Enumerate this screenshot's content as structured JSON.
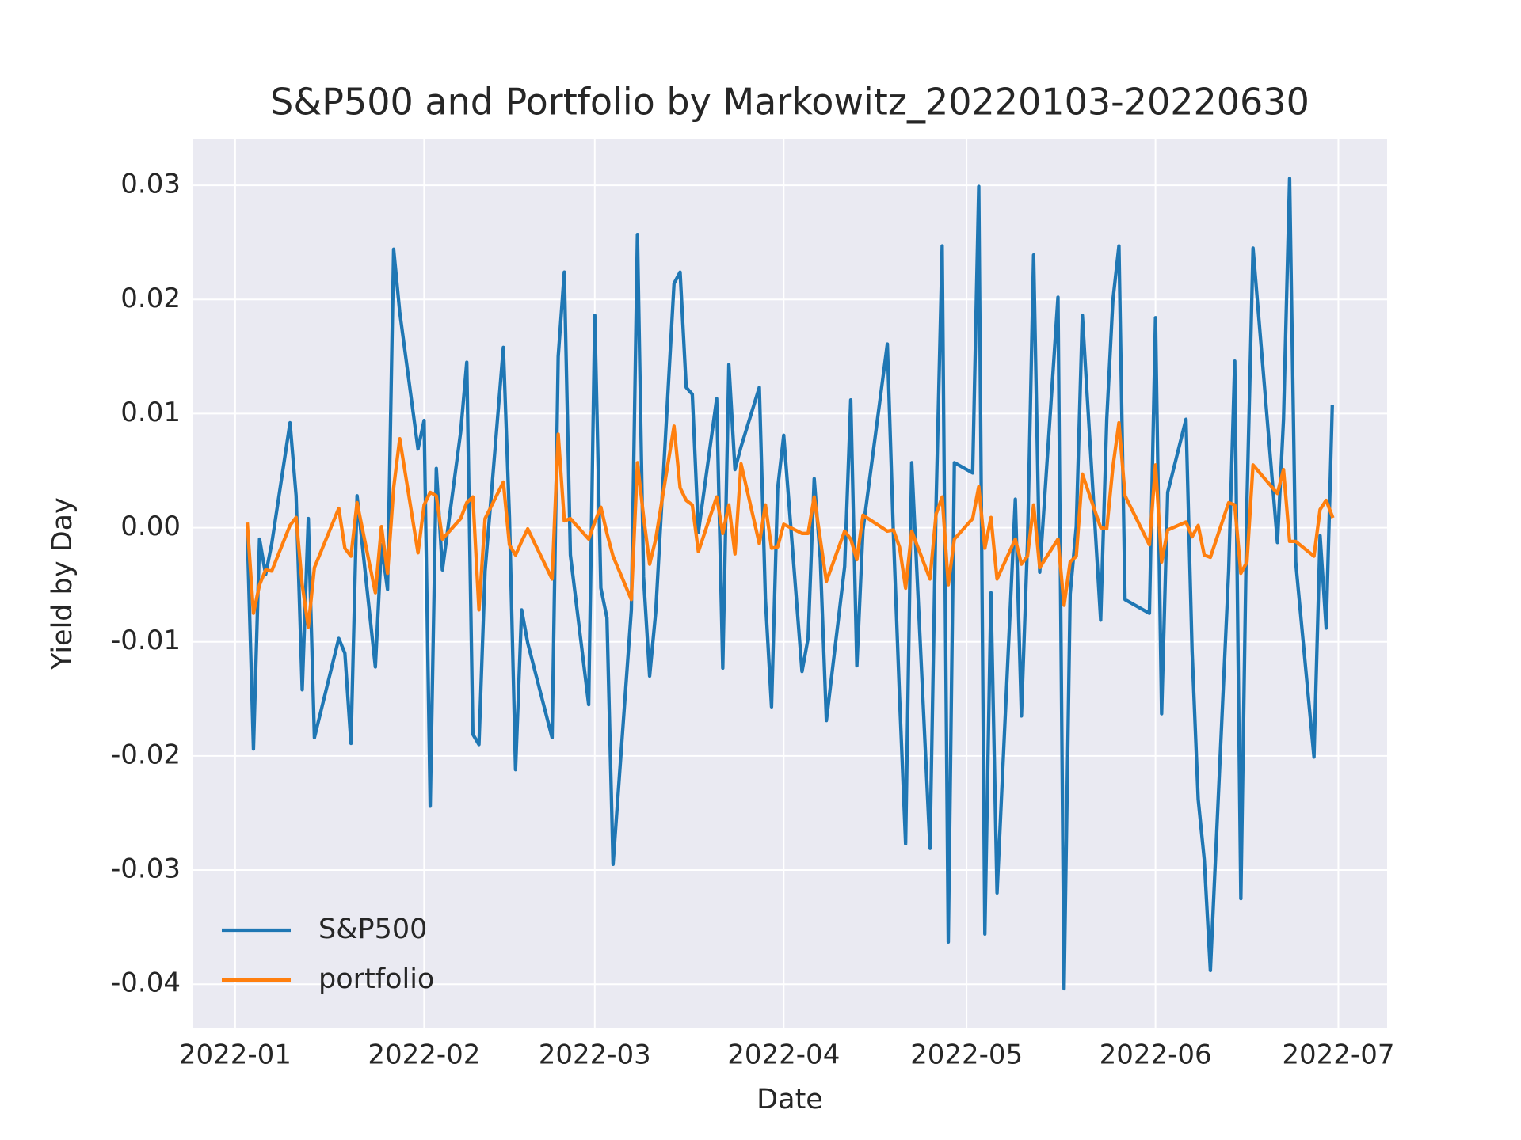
{
  "chart_data": {
    "type": "line",
    "title": "S&P500 and Portfolio by Markowitz_20220103-20220630",
    "xlabel": "Date",
    "ylabel": "Yield by Day",
    "x": [
      "2022-01-03",
      "2022-01-04",
      "2022-01-05",
      "2022-01-06",
      "2022-01-07",
      "2022-01-10",
      "2022-01-11",
      "2022-01-12",
      "2022-01-13",
      "2022-01-14",
      "2022-01-18",
      "2022-01-19",
      "2022-01-20",
      "2022-01-21",
      "2022-01-24",
      "2022-01-25",
      "2022-01-26",
      "2022-01-27",
      "2022-01-28",
      "2022-01-31",
      "2022-02-01",
      "2022-02-02",
      "2022-02-03",
      "2022-02-04",
      "2022-02-07",
      "2022-02-08",
      "2022-02-09",
      "2022-02-10",
      "2022-02-11",
      "2022-02-14",
      "2022-02-15",
      "2022-02-16",
      "2022-02-17",
      "2022-02-18",
      "2022-02-22",
      "2022-02-23",
      "2022-02-24",
      "2022-02-25",
      "2022-02-28",
      "2022-03-01",
      "2022-03-02",
      "2022-03-03",
      "2022-03-04",
      "2022-03-07",
      "2022-03-08",
      "2022-03-09",
      "2022-03-10",
      "2022-03-11",
      "2022-03-14",
      "2022-03-15",
      "2022-03-16",
      "2022-03-17",
      "2022-03-18",
      "2022-03-21",
      "2022-03-22",
      "2022-03-23",
      "2022-03-24",
      "2022-03-25",
      "2022-03-28",
      "2022-03-29",
      "2022-03-30",
      "2022-03-31",
      "2022-04-01",
      "2022-04-04",
      "2022-04-05",
      "2022-04-06",
      "2022-04-07",
      "2022-04-08",
      "2022-04-11",
      "2022-04-12",
      "2022-04-13",
      "2022-04-14",
      "2022-04-18",
      "2022-04-19",
      "2022-04-20",
      "2022-04-21",
      "2022-04-22",
      "2022-04-25",
      "2022-04-26",
      "2022-04-27",
      "2022-04-28",
      "2022-04-29",
      "2022-05-02",
      "2022-05-03",
      "2022-05-04",
      "2022-05-05",
      "2022-05-06",
      "2022-05-09",
      "2022-05-10",
      "2022-05-11",
      "2022-05-12",
      "2022-05-13",
      "2022-05-16",
      "2022-05-17",
      "2022-05-18",
      "2022-05-19",
      "2022-05-20",
      "2022-05-23",
      "2022-05-24",
      "2022-05-25",
      "2022-05-26",
      "2022-05-27",
      "2022-05-31",
      "2022-06-01",
      "2022-06-02",
      "2022-06-03",
      "2022-06-06",
      "2022-06-07",
      "2022-06-08",
      "2022-06-09",
      "2022-06-10",
      "2022-06-13",
      "2022-06-14",
      "2022-06-15",
      "2022-06-16",
      "2022-06-17",
      "2022-06-21",
      "2022-06-22",
      "2022-06-23",
      "2022-06-24",
      "2022-06-27",
      "2022-06-28",
      "2022-06-29",
      "2022-06-30"
    ],
    "series": [
      {
        "name": "S&P500",
        "color": "#1f77b4",
        "values": [
          -0.0006,
          -0.0194,
          -0.001,
          -0.0041,
          -0.0014,
          0.0092,
          0.0028,
          -0.0142,
          0.0008,
          -0.0184,
          -0.0097,
          -0.011,
          -0.0189,
          0.0028,
          -0.0122,
          -0.0015,
          -0.0054,
          0.0244,
          0.0189,
          0.0069,
          0.0094,
          -0.0244,
          0.0052,
          -0.0037,
          0.0084,
          0.0145,
          -0.0181,
          -0.019,
          -0.0038,
          0.0158,
          0.0009,
          -0.0212,
          -0.0072,
          -0.0101,
          -0.0184,
          0.015,
          0.0224,
          -0.0024,
          -0.0155,
          0.0186,
          -0.0053,
          -0.0079,
          -0.0295,
          -0.0072,
          0.0257,
          -0.0043,
          -0.013,
          -0.0074,
          0.0214,
          0.0224,
          0.0123,
          0.0117,
          -0.0004,
          0.0113,
          -0.0123,
          0.0143,
          0.0051,
          0.0071,
          0.0123,
          -0.0063,
          -0.0157,
          0.0034,
          0.0081,
          -0.0126,
          -0.0097,
          0.0043,
          -0.0027,
          -0.0169,
          -0.0034,
          0.0112,
          -0.0121,
          -0.0002,
          0.0161,
          -0.0006,
          -0.0148,
          -0.0277,
          0.0057,
          -0.0281,
          0.0021,
          0.0247,
          -0.0363,
          0.0057,
          0.0048,
          0.0299,
          -0.0356,
          -0.0057,
          -0.032,
          0.0025,
          -0.0165,
          -0.0013,
          0.0239,
          -0.0039,
          0.0202,
          -0.0404,
          -0.0058,
          0.0001,
          0.0186,
          -0.0081,
          0.0095,
          0.0199,
          0.0247,
          -0.0063,
          -0.0075,
          0.0184,
          -0.0163,
          0.0031,
          0.0095,
          -0.0108,
          -0.0238,
          -0.0291,
          -0.0388,
          -0.0038,
          0.0146,
          -0.0325,
          0.0022,
          0.0245,
          -0.0013,
          0.0095,
          0.0306,
          -0.003,
          -0.0201,
          -0.0007,
          -0.0088,
          0.0106
        ]
      },
      {
        "name": "portfolio",
        "color": "#ff7f0e",
        "values": [
          0.0003,
          -0.0075,
          -0.005,
          -0.0037,
          -0.0038,
          0.0002,
          0.0009,
          -0.005,
          -0.0087,
          -0.0035,
          0.0017,
          -0.0018,
          -0.0025,
          0.0022,
          -0.0057,
          0.0001,
          -0.004,
          0.0035,
          0.0078,
          -0.0022,
          0.002,
          0.0031,
          0.0028,
          -0.001,
          0.0008,
          0.0022,
          0.0027,
          -0.0072,
          0.0008,
          0.004,
          -0.0015,
          -0.0024,
          -0.0012,
          -0.0001,
          -0.0045,
          0.0082,
          0.0006,
          0.0008,
          -0.001,
          0.0005,
          0.0018,
          -0.0005,
          -0.0025,
          -0.0063,
          0.0057,
          0.001,
          -0.0032,
          -0.001,
          0.0089,
          0.0035,
          0.0024,
          0.002,
          -0.0021,
          0.0027,
          -0.0005,
          0.002,
          -0.0023,
          0.0056,
          -0.0014,
          0.002,
          -0.0018,
          -0.0017,
          0.0003,
          -0.0005,
          -0.0005,
          0.0027,
          -0.001,
          -0.0047,
          -0.0003,
          -0.001,
          -0.0028,
          0.0011,
          -0.0003,
          -0.0002,
          -0.0017,
          -0.0053,
          -0.0003,
          -0.0045,
          0.0012,
          0.0027,
          -0.005,
          -0.001,
          0.0008,
          0.0036,
          -0.0018,
          0.0009,
          -0.0045,
          -0.001,
          -0.0032,
          -0.0025,
          0.002,
          -0.0035,
          -0.001,
          -0.0068,
          -0.003,
          -0.0025,
          0.0047,
          0,
          -0.0001,
          0.0053,
          0.0092,
          0.0028,
          -0.0015,
          0.0055,
          -0.003,
          -0.0002,
          0.0005,
          -0.0008,
          0.0002,
          -0.0024,
          -0.0026,
          0.0022,
          0.002,
          -0.004,
          -0.003,
          0.0055,
          0.003,
          0.0051,
          -0.0012,
          -0.0012,
          -0.0025,
          0.0016,
          0.0024,
          0.001
        ]
      }
    ],
    "xlim": [
      "2021-12-25",
      "2022-07-09"
    ],
    "xticks": [
      {
        "value": "2022-01-01",
        "label": "2022-01"
      },
      {
        "value": "2022-02-01",
        "label": "2022-02"
      },
      {
        "value": "2022-03-01",
        "label": "2022-03"
      },
      {
        "value": "2022-04-01",
        "label": "2022-04"
      },
      {
        "value": "2022-05-01",
        "label": "2022-05"
      },
      {
        "value": "2022-06-01",
        "label": "2022-06"
      },
      {
        "value": "2022-07-01",
        "label": "2022-07"
      }
    ],
    "ylim": [
      -0.0438,
      0.0341
    ],
    "yticks": [
      -0.04,
      -0.03,
      -0.02,
      -0.01,
      {
        "value": 0,
        "label": "0.00"
      },
      0.01,
      0.02,
      0.03
    ],
    "grid": true,
    "legend": "lower left"
  }
}
